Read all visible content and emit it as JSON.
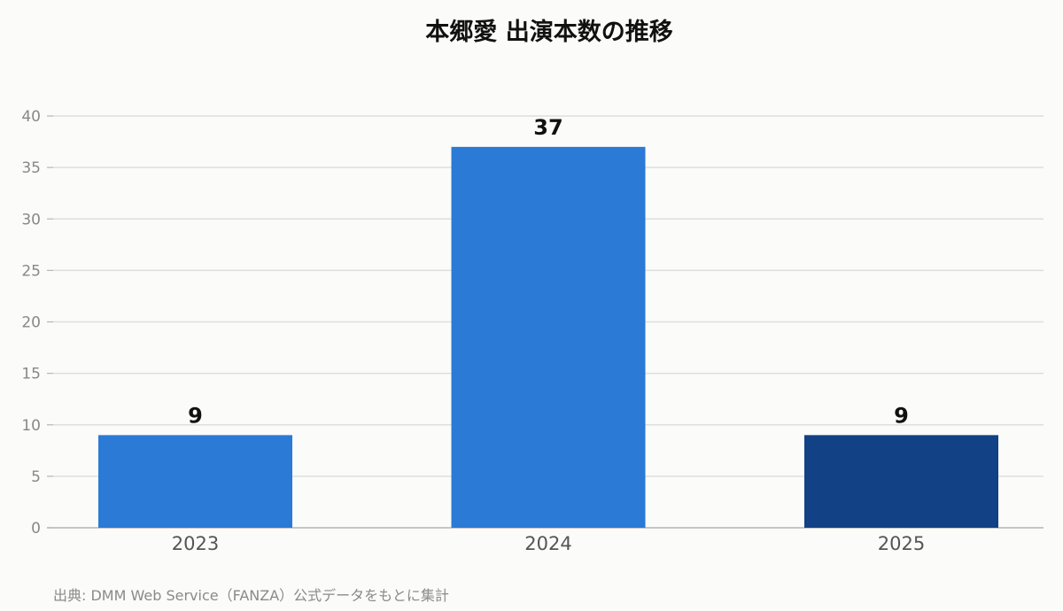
{
  "chart_data": {
    "type": "bar",
    "title": "本郷愛 出演本数の推移",
    "categories": [
      "2023",
      "2024",
      "2025"
    ],
    "values": [
      9,
      37,
      9
    ],
    "data_labels": [
      "9",
      "37",
      "9"
    ],
    "bar_colors": [
      "#2a7ad6",
      "#2a7ad6",
      "#124185"
    ],
    "ylim": [
      0,
      40
    ],
    "yticks": [
      0,
      5,
      10,
      15,
      20,
      25,
      30,
      35,
      40
    ],
    "xlabel": "",
    "ylabel": "",
    "grid": true
  },
  "footer": {
    "source": "出典: DMM Web Service（FANZA）公式データをもとに集計"
  },
  "colors": {
    "background": "#fbfbf9",
    "grid": "#dedede",
    "axis": "#b5b5b5",
    "tick_label": "#888888",
    "category_label": "#555555"
  }
}
